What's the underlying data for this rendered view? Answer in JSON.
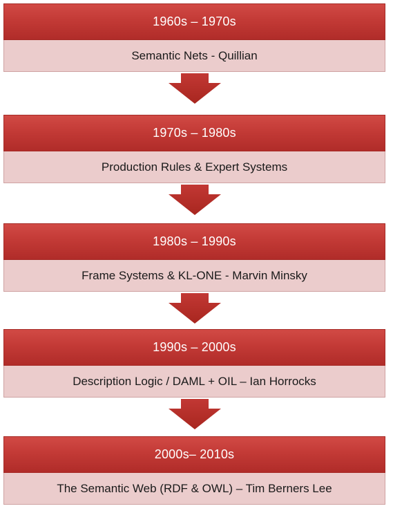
{
  "timeline": [
    {
      "period": "1960s – 1970s",
      "description": "Semantic Nets - Quillian"
    },
    {
      "period": "1970s – 1980s",
      "description": "Production Rules & Expert Systems"
    },
    {
      "period": "1980s – 1990s",
      "description": "Frame Systems & KL-ONE - Marvin Minsky"
    },
    {
      "period": "1990s – 2000s",
      "description": "Description Logic / DAML  + OIL – Ian Horrocks"
    },
    {
      "period": "2000s– 2010s",
      "description": "The Semantic Web (RDF & OWL) – Tim Berners Lee"
    }
  ],
  "colors": {
    "header": "#c33a36",
    "body": "#ebcccc",
    "arrow": "#b8302c"
  }
}
